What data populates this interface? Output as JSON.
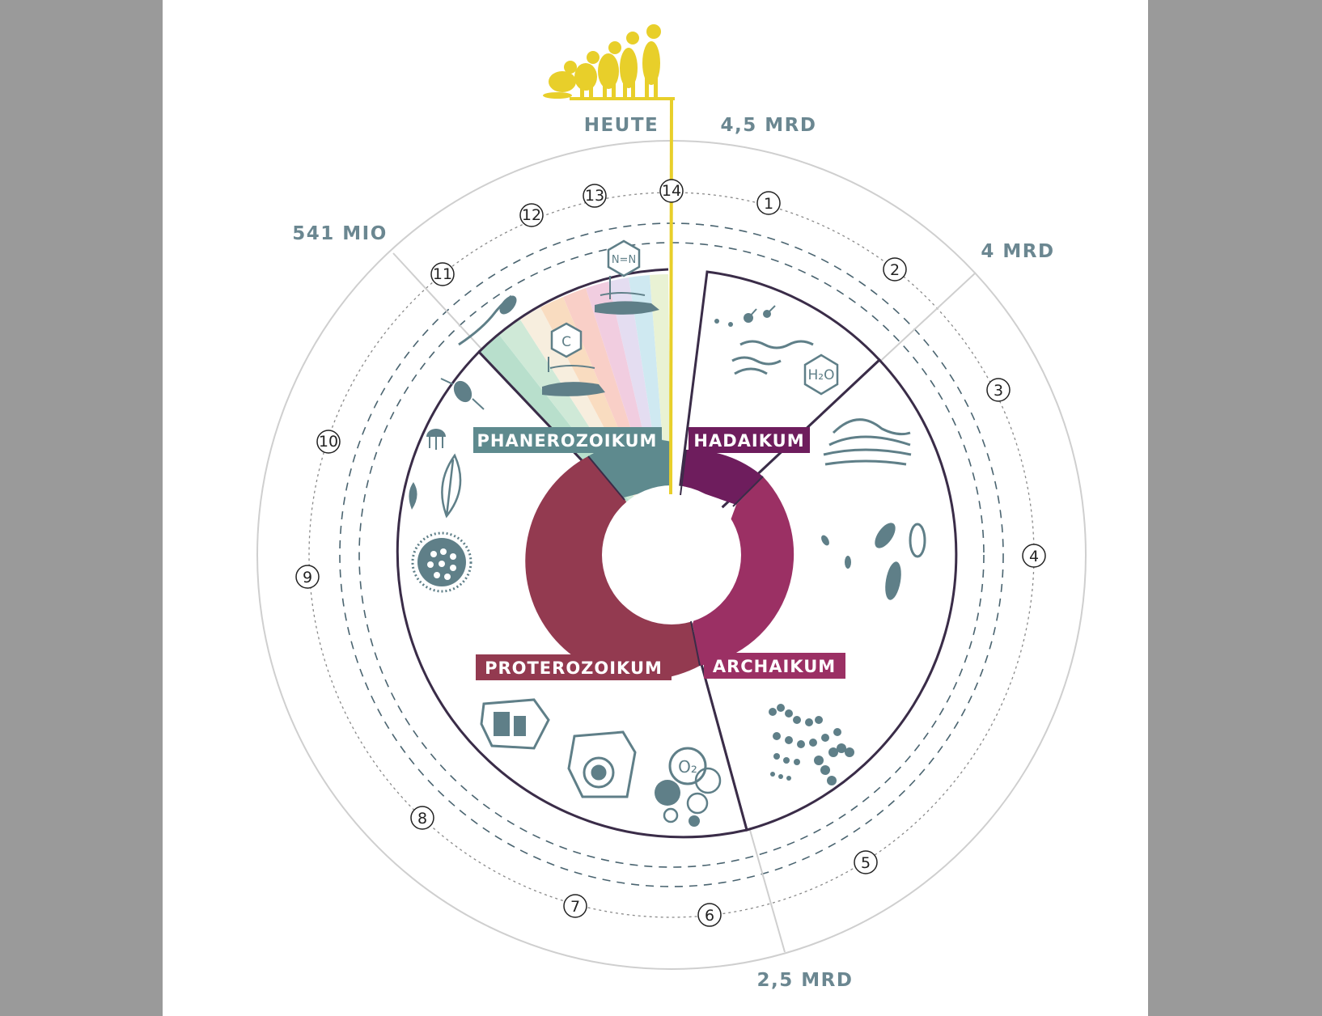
{
  "time_labels": {
    "today": "HEUTE",
    "start": "4,5 MRD",
    "four_billion": "4 MRD",
    "two_five_billion": "2,5 MRD",
    "phanerozoic_start": "541 MIO"
  },
  "eras": [
    {
      "name": "HADAIKUM",
      "color": "#6e1d5d"
    },
    {
      "name": "ARCHAIKUM",
      "color": "#9b3064"
    },
    {
      "name": "PROTEROZOIKUM",
      "color": "#933a50"
    },
    {
      "name": "PHANEROZOIKUM",
      "color": "#5e8a8e"
    }
  ],
  "markers": [
    "1",
    "2",
    "3",
    "4",
    "5",
    "6",
    "7",
    "8",
    "9",
    "10",
    "11",
    "12",
    "13",
    "14"
  ],
  "icons": {
    "water": "water-icon",
    "water_formula": "H₂O",
    "carbon": "C",
    "nitrogen": "N=N",
    "oxygen": "O₂"
  },
  "colors": {
    "accent_yellow": "#e8cf2a",
    "line_dark": "#3a2c48",
    "icon_grey": "#5f7f88",
    "ring_grey": "#cfcfcf"
  }
}
